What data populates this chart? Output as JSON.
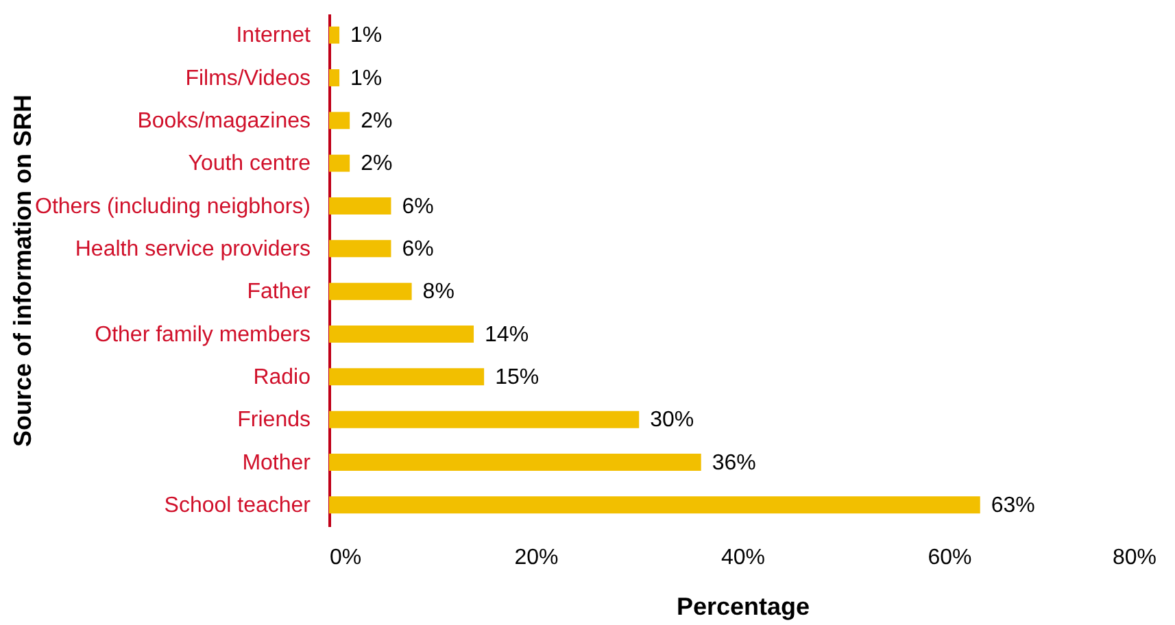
{
  "chart_data": {
    "type": "bar",
    "orientation": "horizontal",
    "categories": [
      "Internet",
      "Films/Videos",
      "Books/magazines",
      "Youth centre",
      "Others (including neigbhors)",
      "Health service providers ",
      "Father",
      "Other family members",
      "Radio",
      "Friends",
      "Mother",
      "School teacher"
    ],
    "values": [
      1,
      1,
      2,
      2,
      6,
      6,
      8,
      14,
      15,
      30,
      36,
      63
    ],
    "value_labels": [
      "1%",
      "1%",
      "2%",
      "2%",
      "6%",
      "6%",
      "8%",
      "14%",
      "15%",
      "30%",
      "36%",
      "63%"
    ],
    "color": "#f2bf00",
    "xlabel": "Percentage",
    "ylabel": "Source of information on SRH",
    "xlim": [
      0,
      80
    ],
    "xticks": [
      {
        "value": 0,
        "label": "0%"
      },
      {
        "value": 20,
        "label": "20%"
      },
      {
        "value": 40,
        "label": "40%"
      },
      {
        "value": 60,
        "label": "60%"
      },
      {
        "value": 80,
        "label": "80%"
      }
    ],
    "grid": false
  }
}
